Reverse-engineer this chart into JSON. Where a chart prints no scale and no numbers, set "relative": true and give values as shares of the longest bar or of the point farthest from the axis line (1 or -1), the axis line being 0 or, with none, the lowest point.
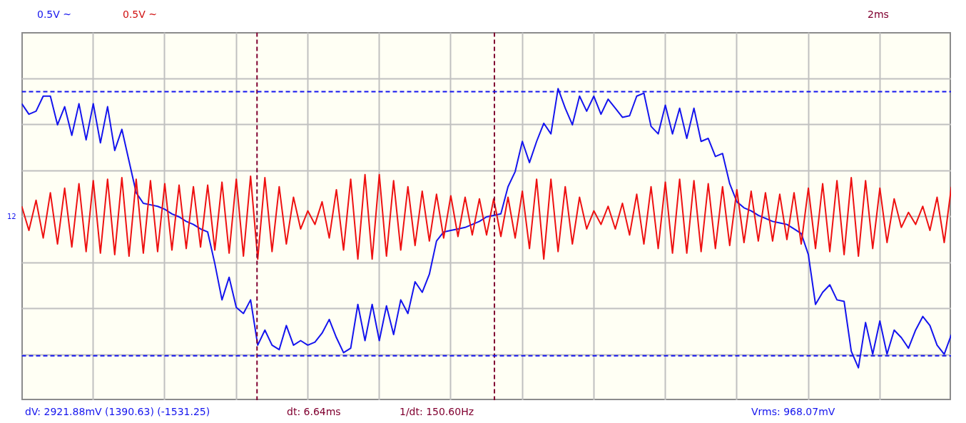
{
  "chart_data": {
    "type": "line",
    "relative": true,
    "grid": true,
    "categories": [
      null,
      null,
      null,
      null,
      null,
      null,
      null,
      null,
      null,
      null,
      null,
      null,
      null,
      null,
      null,
      null,
      null,
      null,
      null,
      null,
      null,
      null,
      null,
      null,
      null,
      null,
      null,
      null,
      null,
      null,
      null,
      null,
      null,
      null,
      null,
      null,
      null,
      null,
      null,
      null,
      null,
      null,
      null,
      null,
      null,
      null,
      null,
      null,
      null,
      null,
      null,
      null,
      null,
      null,
      null,
      null,
      null,
      null,
      null,
      null,
      null,
      null,
      null,
      null,
      null,
      null,
      null,
      null,
      null,
      null,
      null,
      null,
      null,
      null,
      null,
      null,
      null,
      null,
      null,
      null,
      null,
      null,
      null,
      null,
      null,
      null,
      null,
      null,
      null,
      null,
      null,
      null,
      null,
      null,
      null,
      null,
      null,
      null,
      null,
      null,
      null,
      null,
      null,
      null,
      null,
      null,
      null,
      null,
      null,
      null,
      null,
      null,
      null,
      null,
      null,
      null,
      null,
      null,
      null,
      null,
      null,
      null,
      null,
      null,
      null,
      null,
      null,
      null,
      null,
      null,
      null
    ],
    "series": [
      {
        "color": "#1414ee",
        "values": [
          0.75,
          0.68,
          0.7,
          0.8,
          0.8,
          0.61,
          0.73,
          0.54,
          0.75,
          0.51,
          0.75,
          0.49,
          0.73,
          0.44,
          0.58,
          0.37,
          0.16,
          0.09,
          0.08,
          0.07,
          0.05,
          0.02,
          0.0,
          -0.03,
          -0.05,
          -0.08,
          -0.1,
          -0.31,
          -0.55,
          -0.4,
          -0.6,
          -0.64,
          -0.55,
          -0.85,
          -0.75,
          -0.85,
          -0.88,
          -0.72,
          -0.85,
          -0.82,
          -0.85,
          -0.83,
          -0.77,
          -0.68,
          -0.8,
          -0.9,
          -0.87,
          -0.58,
          -0.82,
          -0.58,
          -0.82,
          -0.59,
          -0.78,
          -0.55,
          -0.64,
          -0.43,
          -0.5,
          -0.38,
          -0.16,
          -0.1,
          -0.09,
          -0.08,
          -0.07,
          -0.05,
          -0.03,
          0.0,
          0.01,
          0.02,
          0.2,
          0.3,
          0.5,
          0.36,
          0.5,
          0.62,
          0.55,
          0.85,
          0.72,
          0.61,
          0.8,
          0.7,
          0.8,
          0.68,
          0.78,
          0.72,
          0.66,
          0.67,
          0.8,
          0.82,
          0.6,
          0.55,
          0.74,
          0.55,
          0.72,
          0.52,
          0.72,
          0.5,
          0.52,
          0.4,
          0.42,
          0.22,
          0.1,
          0.06,
          0.04,
          0.01,
          -0.01,
          -0.03,
          -0.04,
          -0.05,
          -0.08,
          -0.11,
          -0.25,
          -0.58,
          -0.5,
          -0.45,
          -0.55,
          -0.56,
          -0.89,
          -1.0,
          -0.7,
          -0.91,
          -0.69,
          -0.91,
          -0.75,
          -0.8,
          -0.87,
          -0.75,
          -0.66,
          -0.72,
          -0.85,
          -0.91,
          -0.78
        ]
      },
      {
        "color": "#ee1111",
        "values": [
          0.07,
          -0.09,
          0.11,
          -0.14,
          0.16,
          -0.18,
          0.19,
          -0.2,
          0.22,
          -0.23,
          0.24,
          -0.24,
          0.25,
          -0.25,
          0.26,
          -0.26,
          0.25,
          -0.24,
          0.24,
          -0.23,
          0.22,
          -0.22,
          0.21,
          -0.21,
          0.2,
          -0.2,
          0.21,
          -0.22,
          0.23,
          -0.24,
          0.25,
          -0.26,
          0.27,
          -0.28,
          0.26,
          -0.23,
          0.2,
          -0.18,
          0.13,
          -0.08,
          0.04,
          -0.05,
          0.1,
          -0.14,
          0.18,
          -0.22,
          0.25,
          -0.28,
          0.28,
          -0.28,
          0.28,
          -0.26,
          0.24,
          -0.22,
          0.2,
          -0.19,
          0.17,
          -0.16,
          0.15,
          -0.14,
          0.14,
          -0.13,
          0.13,
          -0.12,
          0.12,
          -0.12,
          0.12,
          -0.13,
          0.13,
          -0.14,
          0.17,
          -0.21,
          0.25,
          -0.28,
          0.25,
          -0.23,
          0.2,
          -0.18,
          0.13,
          -0.08,
          0.04,
          -0.05,
          0.07,
          -0.08,
          0.09,
          -0.12,
          0.15,
          -0.18,
          0.2,
          -0.21,
          0.23,
          -0.24,
          0.25,
          -0.24,
          0.24,
          -0.23,
          0.22,
          -0.21,
          0.2,
          -0.19,
          0.18,
          -0.17,
          0.17,
          -0.16,
          0.16,
          -0.16,
          0.15,
          -0.15,
          0.16,
          -0.18,
          0.19,
          -0.21,
          0.22,
          -0.23,
          0.24,
          -0.25,
          0.26,
          -0.26,
          0.24,
          -0.21,
          0.19,
          -0.17,
          0.12,
          -0.07,
          0.03,
          -0.05,
          0.07,
          -0.09,
          0.13,
          -0.17,
          0.2
        ]
      }
    ],
    "ref_lines": [
      {
        "axis": "y",
        "value": 0.83,
        "color": "#1414ee",
        "line_style": "dashed"
      },
      {
        "axis": "y",
        "value": -0.92,
        "color": "#1414ee",
        "line_style": "dashed"
      }
    ],
    "annotations": [
      "0.5V ~",
      "0.5V ~",
      "2ms",
      "12",
      "dV: 2921.88mV (1390.63) (-1531.25)",
      "dt: 6.64ms",
      "1/dt: 150.60Hz",
      "Vrms: 968.07mV"
    ]
  }
}
